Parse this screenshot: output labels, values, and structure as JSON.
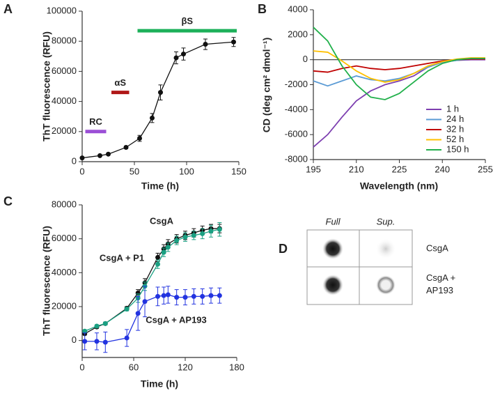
{
  "chart_data": [
    {
      "type": "line",
      "panel_label": "A",
      "x_label": "Time (h)",
      "y_label": "ThT fluorescence (RFU)",
      "x": [
        0,
        17,
        25,
        42,
        55,
        67,
        75,
        90,
        97,
        118,
        145
      ],
      "series": [
        {
          "name": null,
          "color": "#111111",
          "values": [
            2500,
            4000,
            5000,
            9500,
            15500,
            29000,
            46000,
            69000,
            71500,
            78000,
            79500
          ],
          "errors": [
            500,
            500,
            500,
            800,
            2000,
            3000,
            5000,
            4000,
            4000,
            3500,
            3000
          ]
        }
      ],
      "spans": [
        {
          "label": "RC",
          "color": "#9b4fd6",
          "x": [
            3,
            23
          ],
          "y": 20000
        },
        {
          "label": "αS",
          "color": "#b01818",
          "x": [
            28,
            45
          ],
          "y": 46000
        },
        {
          "label": "βS",
          "color": "#1db05a",
          "x": [
            53,
            148
          ],
          "y": 87000
        }
      ],
      "xlim": [
        0,
        150
      ],
      "xticks": [
        0,
        50,
        100,
        150
      ],
      "ylim": [
        0,
        100000
      ],
      "yticks": [
        0,
        20000,
        40000,
        60000,
        80000,
        100000
      ],
      "markers": true
    },
    {
      "type": "line",
      "panel_label": "B",
      "x_label": "Wavelength (nm)",
      "y_label": "CD (deg cm² dmol⁻¹)",
      "x": [
        195,
        200,
        205,
        210,
        215,
        220,
        225,
        230,
        235,
        240,
        245,
        250,
        255
      ],
      "series": [
        {
          "name": "1 h",
          "color": "#7d3fb0",
          "values": [
            -7000,
            -6000,
            -4600,
            -3300,
            -2500,
            -2000,
            -1700,
            -1300,
            -600,
            -200,
            -50,
            0,
            0
          ]
        },
        {
          "name": "24 h",
          "color": "#5b9bd5",
          "values": [
            -1700,
            -2100,
            -1700,
            -1300,
            -1600,
            -1700,
            -1500,
            -1100,
            -600,
            -200,
            -50,
            50,
            50
          ]
        },
        {
          "name": "32 h",
          "color": "#c00000",
          "values": [
            -900,
            -1000,
            -700,
            -500,
            -700,
            -800,
            -700,
            -500,
            -300,
            -100,
            0,
            50,
            50
          ]
        },
        {
          "name": "52 h",
          "color": "#ffc000",
          "values": [
            700,
            600,
            -100,
            -900,
            -1500,
            -1800,
            -1600,
            -1100,
            -500,
            -150,
            50,
            150,
            150
          ]
        },
        {
          "name": "150 h",
          "color": "#21b04b",
          "values": [
            2600,
            1500,
            -500,
            -2000,
            -3000,
            -3200,
            -2700,
            -1800,
            -900,
            -300,
            0,
            100,
            100
          ]
        }
      ],
      "xlim": [
        195,
        255
      ],
      "xticks": [
        195,
        210,
        225,
        240,
        255
      ],
      "ylim": [
        -8000,
        4000
      ],
      "yticks": [
        -8000,
        -6000,
        -4000,
        -2000,
        0,
        2000,
        4000
      ],
      "zero_line": true,
      "legend": "right"
    },
    {
      "type": "line",
      "panel_label": "C",
      "x_label": "Time (h)",
      "y_label": "ThT fluorescence (RFU)",
      "x": [
        3,
        17,
        27,
        52,
        65,
        73,
        88,
        95,
        100,
        110,
        120,
        130,
        140,
        150,
        160
      ],
      "series": [
        {
          "name": "CsgA",
          "color": "#111111",
          "values": [
            4000,
            8000,
            10000,
            19000,
            28000,
            34000,
            49000,
            54000,
            57000,
            60000,
            62000,
            63500,
            65000,
            66000,
            66000
          ],
          "errors": [
            800,
            800,
            800,
            1000,
            2000,
            2500,
            2500,
            2500,
            2500,
            2500,
            2500,
            2500,
            2500,
            2500,
            2500
          ]
        },
        {
          "name": "CsgA + P1",
          "color": "#1aa082",
          "values": [
            5500,
            8500,
            10000,
            18500,
            25000,
            32000,
            45000,
            52000,
            55000,
            59000,
            61000,
            62000,
            63000,
            64500,
            65500
          ],
          "errors": [
            800,
            800,
            800,
            1000,
            2500,
            2500,
            2500,
            2500,
            2500,
            2500,
            2500,
            2500,
            3000,
            3500,
            4000
          ]
        },
        {
          "name": "CsgA + AP193",
          "color": "#2233e0",
          "values": [
            -500,
            -500,
            -1000,
            1500,
            16000,
            23000,
            26000,
            26500,
            27000,
            25500,
            25500,
            26000,
            26000,
            26500,
            26500
          ],
          "errors": [
            5000,
            5000,
            6000,
            5000,
            10000,
            9000,
            5500,
            5000,
            5000,
            4500,
            4500,
            4500,
            4500,
            4500,
            4500
          ]
        }
      ],
      "xlim": [
        0,
        180
      ],
      "xticks": [
        0,
        60,
        120,
        180
      ],
      "ylim": [
        -10000,
        80000
      ],
      "yticks": [
        0,
        20000,
        40000,
        60000,
        80000
      ],
      "markers": true
    }
  ],
  "blot": {
    "panel_label": "D",
    "columns": [
      "Full",
      "Sup."
    ],
    "rows": [
      "CsgA",
      "CsgA +\nAP193"
    ]
  }
}
